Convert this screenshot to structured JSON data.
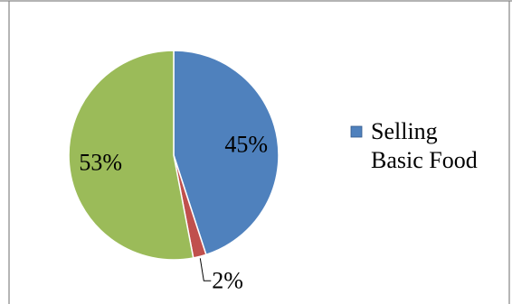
{
  "chart_data": {
    "type": "pie",
    "slices": [
      {
        "label": "Selling Basic Food",
        "value": 45,
        "data_label": "45%",
        "color": "#4f81bd"
      },
      {
        "label": "",
        "value": 2,
        "data_label": "2%",
        "color": "#c0504d"
      },
      {
        "label": "",
        "value": 53,
        "data_label": "53%",
        "color": "#9bbb59"
      }
    ],
    "title": "",
    "legend": {
      "placement": "right",
      "entries": [
        {
          "label_lines": [
            "Selling",
            "Basic Food"
          ],
          "color": "#4f81bd"
        }
      ]
    }
  }
}
